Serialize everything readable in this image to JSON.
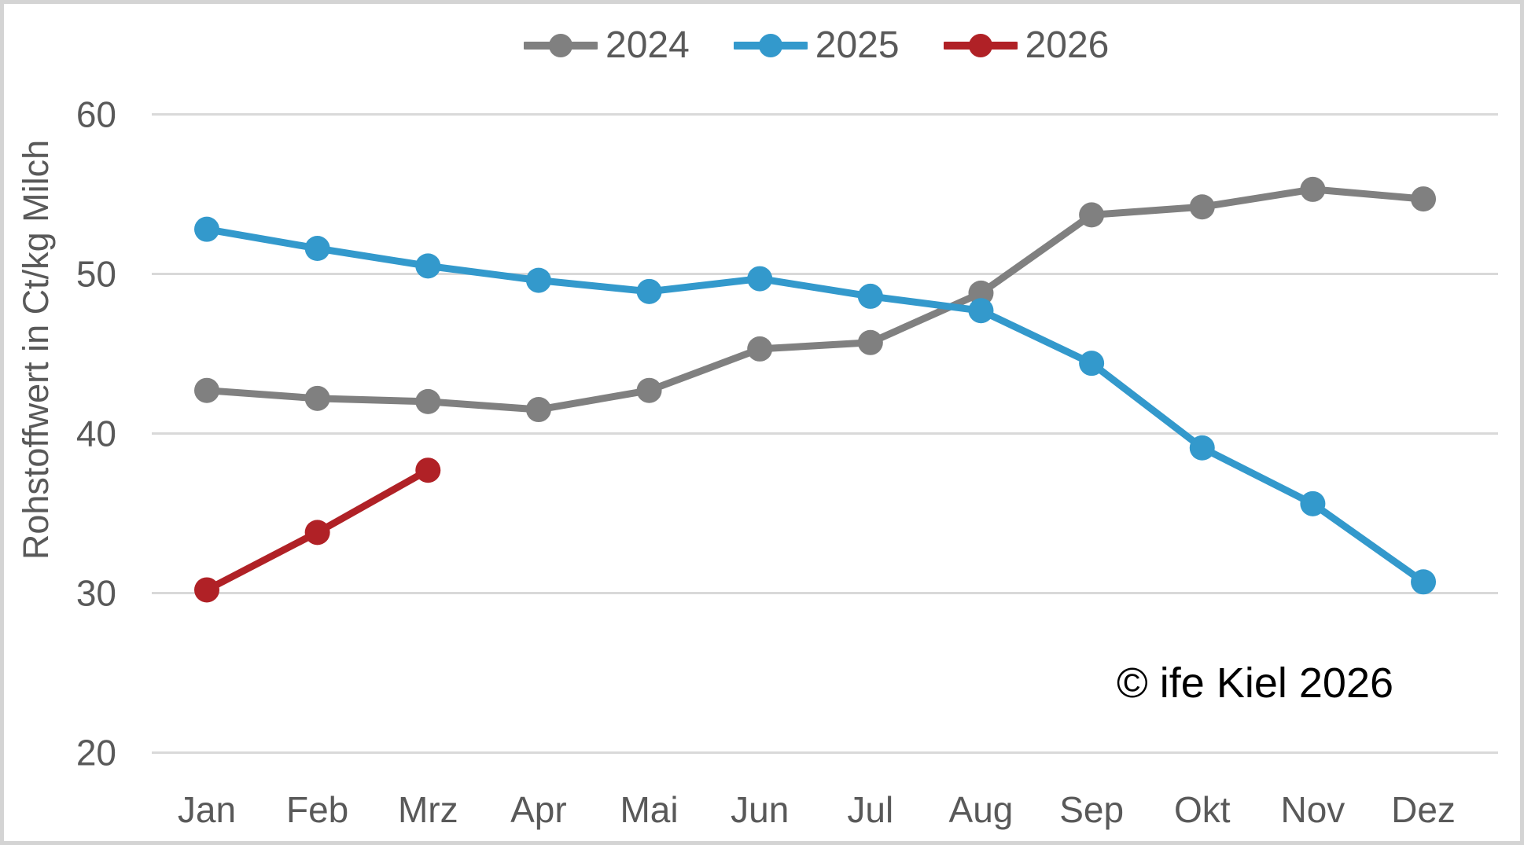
{
  "chart_data": {
    "type": "line",
    "categories": [
      "Jan",
      "Feb",
      "Mrz",
      "Apr",
      "Mai",
      "Jun",
      "Jul",
      "Aug",
      "Sep",
      "Okt",
      "Nov",
      "Dez"
    ],
    "series": [
      {
        "name": "2024",
        "color": "#808080",
        "values": [
          42.7,
          42.2,
          42.0,
          41.5,
          42.7,
          45.3,
          45.7,
          48.8,
          53.7,
          54.2,
          55.3,
          54.7
        ]
      },
      {
        "name": "2025",
        "color": "#3399CC",
        "values": [
          52.8,
          51.6,
          50.5,
          49.6,
          48.9,
          49.7,
          48.6,
          47.7,
          44.4,
          39.1,
          35.6,
          30.7
        ]
      },
      {
        "name": "2026",
        "color": "#B02126",
        "values": [
          30.2,
          33.8,
          37.7,
          null,
          null,
          null,
          null,
          null,
          null,
          null,
          null,
          null
        ]
      }
    ],
    "xlabel": "",
    "ylabel": "Rohstoffwert in Ct/kg Milch",
    "ylim": [
      20,
      60
    ],
    "yticks": [
      20,
      30,
      40,
      50,
      60
    ],
    "grid": "horizontal",
    "gridline_color": "#D9D9D9",
    "axis_text_color": "#595959",
    "legend_position": "top-center",
    "annotation": "© ife Kiel 2026"
  }
}
